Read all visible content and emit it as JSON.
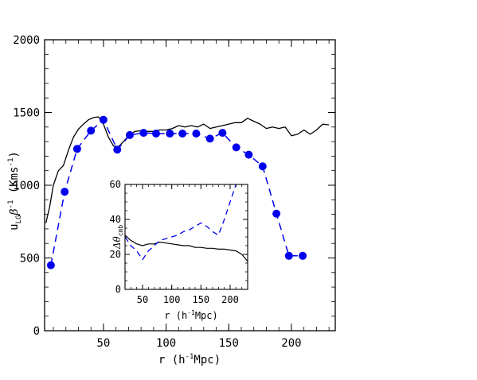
{
  "chart_data": [
    {
      "type": "line",
      "xlabel_text": "r (h",
      "xlabel_sup": "-1",
      "xlabel_tail": "Mpc)",
      "ylabel_u": "u",
      "ylabel_sub": "LG",
      "ylabel_beta": "β",
      "ylabel_sup": "-1",
      "ylabel_tail": " (Kms",
      "ylabel_sup2": "-1",
      "ylabel_close": ")",
      "xlim": [
        3,
        235
      ],
      "ylim": [
        0,
        2000
      ],
      "xticks": [
        50,
        100,
        150,
        200
      ],
      "yticks": [
        0,
        500,
        1000,
        1500,
        2000
      ],
      "series": [
        {
          "style": "solid-black",
          "x": [
            4,
            7,
            10,
            14,
            18,
            22,
            26,
            30,
            34,
            38,
            42,
            46,
            50,
            54,
            58,
            62,
            66,
            70,
            75,
            80,
            85,
            90,
            95,
            100,
            105,
            110,
            115,
            120,
            125,
            130,
            135,
            140,
            145,
            150,
            155,
            160,
            165,
            170,
            175,
            180,
            185,
            190,
            195,
            200,
            205,
            210,
            215,
            220,
            225,
            230
          ],
          "y": [
            740,
            850,
            1000,
            1100,
            1135,
            1240,
            1330,
            1385,
            1420,
            1450,
            1465,
            1470,
            1420,
            1330,
            1270,
            1265,
            1300,
            1340,
            1370,
            1375,
            1370,
            1370,
            1380,
            1380,
            1390,
            1410,
            1400,
            1410,
            1400,
            1420,
            1390,
            1400,
            1410,
            1420,
            1430,
            1430,
            1460,
            1440,
            1420,
            1390,
            1400,
            1390,
            1400,
            1340,
            1350,
            1380,
            1350,
            1380,
            1420,
            1415
          ]
        },
        {
          "style": "dashed-blue-dots",
          "color": "#0000ee",
          "x": [
            8,
            19,
            29,
            40,
            50,
            61,
            71,
            82,
            92,
            103,
            113,
            124,
            135,
            145,
            156,
            166,
            177,
            188,
            198,
            209
          ],
          "y": [
            450,
            955,
            1250,
            1375,
            1450,
            1245,
            1345,
            1360,
            1355,
            1355,
            1355,
            1355,
            1320,
            1360,
            1260,
            1210,
            1130,
            805,
            515,
            515
          ]
        }
      ]
    },
    {
      "type": "line",
      "xlabel_text": "r (h",
      "xlabel_sup": "-1",
      "xlabel_tail": "Mpc)",
      "ylabel_delta": "Δ",
      "ylabel_theta": "θ",
      "ylabel_sub": "cmb",
      "xlim": [
        20,
        230
      ],
      "ylim": [
        0,
        60
      ],
      "xticks": [
        50,
        100,
        150,
        200
      ],
      "yticks": [
        0,
        20,
        40,
        60
      ],
      "series": [
        {
          "style": "solid-black",
          "x": [
            20,
            30,
            40,
            50,
            60,
            70,
            80,
            90,
            100,
            110,
            120,
            130,
            140,
            150,
            160,
            170,
            180,
            190,
            200,
            210,
            220,
            230
          ],
          "y": [
            31,
            28,
            26,
            25,
            26,
            26,
            27,
            26.5,
            26,
            25.5,
            25,
            25,
            24,
            24,
            23.5,
            23.5,
            23,
            23,
            22.5,
            22,
            20,
            16
          ]
        },
        {
          "style": "dashed-blue",
          "color": "#0000ee",
          "x": [
            20,
            30,
            40,
            50,
            60,
            70,
            80,
            90,
            100,
            110,
            120,
            130,
            140,
            150,
            160,
            170,
            180,
            190,
            200,
            210,
            220,
            230
          ],
          "y": [
            30,
            25,
            22,
            17,
            22,
            25,
            28,
            29,
            30,
            31,
            33,
            34,
            36,
            38,
            36,
            33,
            31,
            40,
            50,
            60,
            63,
            70
          ]
        }
      ]
    }
  ]
}
